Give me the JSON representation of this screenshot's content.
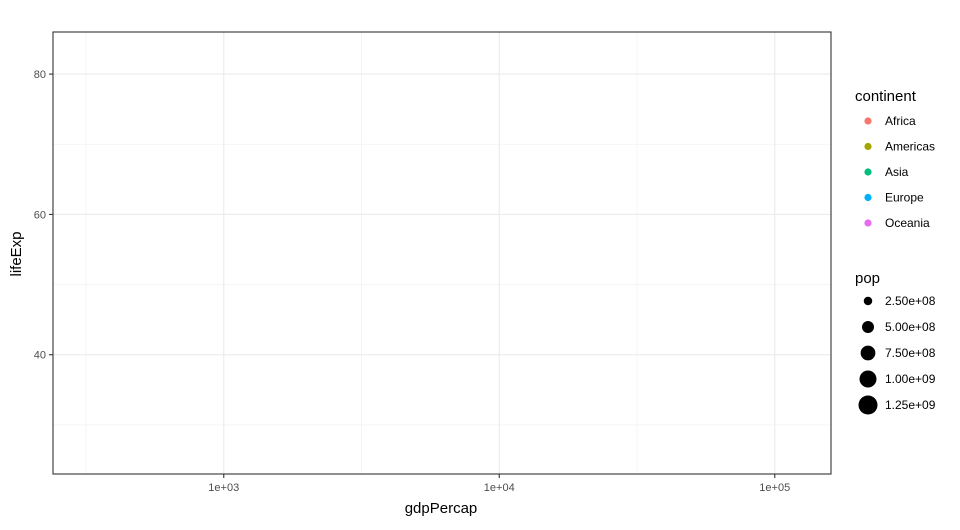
{
  "chart_data": {
    "type": "scatter",
    "title": "",
    "xlabel": "gdpPercap",
    "ylabel": "lifeExp",
    "x_scale": "log10",
    "xlim": [
      240,
      160000
    ],
    "ylim": [
      23,
      86
    ],
    "x_ticks": [
      {
        "value": 1000,
        "label": "1e+03"
      },
      {
        "value": 10000,
        "label": "1e+04"
      },
      {
        "value": 100000,
        "label": "1e+05"
      }
    ],
    "x_minor_ticks": [
      316.23,
      3162.28,
      31622.78
    ],
    "y_ticks": [
      {
        "value": 40,
        "label": "40"
      },
      {
        "value": 60,
        "label": "60"
      },
      {
        "value": 80,
        "label": "80"
      }
    ],
    "y_minor_ticks": [
      30,
      50,
      70
    ],
    "grid": true,
    "points": [],
    "legend": {
      "position": "right",
      "color": {
        "title": "continent",
        "entries": [
          {
            "label": "Africa",
            "color": "#F8766D"
          },
          {
            "label": "Americas",
            "color": "#A3A500"
          },
          {
            "label": "Asia",
            "color": "#00BF7D"
          },
          {
            "label": "Europe",
            "color": "#00B0F6"
          },
          {
            "label": "Oceania",
            "color": "#E76BF3"
          }
        ]
      },
      "size": {
        "title": "pop",
        "entries": [
          {
            "label": "2.50e+08",
            "value": 250000000
          },
          {
            "label": "5.00e+08",
            "value": 500000000
          },
          {
            "label": "7.50e+08",
            "value": 750000000
          },
          {
            "label": "1.00e+09",
            "value": 1000000000
          },
          {
            "label": "1.25e+09",
            "value": 1250000000
          }
        ]
      }
    }
  }
}
